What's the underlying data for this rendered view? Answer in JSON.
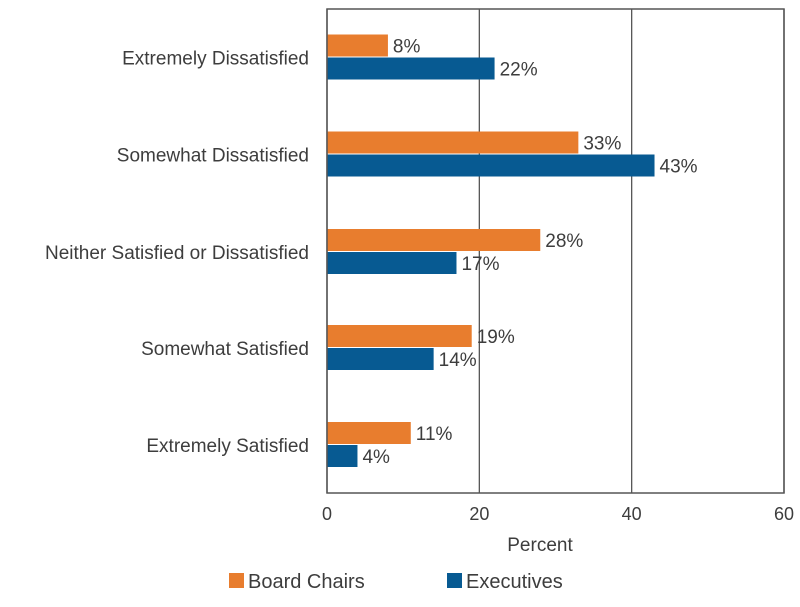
{
  "chart_data": {
    "type": "bar",
    "orientation": "horizontal",
    "categories": [
      "Extremely Dissatisfied",
      "Somewhat Dissatisfied",
      "Neither Satisfied or Dissatisfied",
      "Somewhat Satisfied",
      "Extremely Satisfied"
    ],
    "series": [
      {
        "name": "Board Chairs",
        "color": "#e87d2e",
        "values": [
          8,
          33,
          28,
          19,
          11
        ],
        "labels": [
          "8%",
          "33%",
          "28%",
          "19%",
          "11%"
        ]
      },
      {
        "name": "Executives",
        "color": "#075a92",
        "values": [
          22,
          43,
          17,
          14,
          4
        ],
        "labels": [
          "22%",
          "43%",
          "17%",
          "14%",
          "4%"
        ]
      }
    ],
    "xlabel": "Percent",
    "ylabel": "",
    "xlim": [
      0,
      60
    ],
    "xticks": [
      "0",
      "20",
      "40",
      "60"
    ],
    "grid": "vertical",
    "legend": "bottom"
  }
}
